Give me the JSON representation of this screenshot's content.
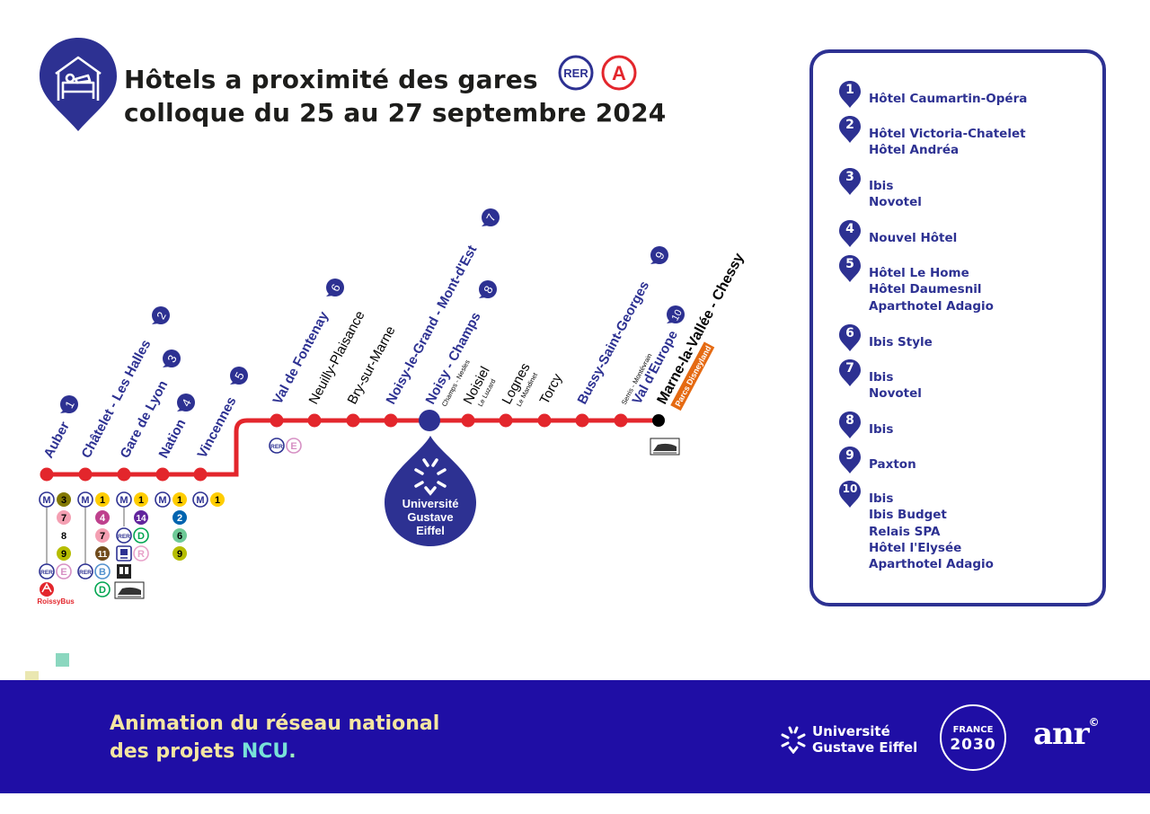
{
  "title": {
    "line1": "Hôtels a proximité des gares",
    "line2": "colloque du 25 au 27 septembre 2024",
    "badge_rer": "RER",
    "badge_line": "A"
  },
  "stations": [
    {
      "name": "Auber",
      "num": "1"
    },
    {
      "name": "Châtelet - Les Halles",
      "num": "2"
    },
    {
      "name": "Gare de Lyon",
      "num": "3"
    },
    {
      "name": "Nation",
      "num": "4"
    },
    {
      "name": "Vincennes",
      "num": "5"
    },
    {
      "name": "Val de Fontenay",
      "num": "6"
    },
    {
      "name": "Neuilly-Plaisance"
    },
    {
      "name": "Bry-sur-Marne"
    },
    {
      "name": "Noisy-le-Grand - Mont-d'Est",
      "num": "7"
    },
    {
      "name": "Noisy - Champs",
      "sub": "Champs - Nesles",
      "num": "8"
    },
    {
      "name": "Noisiel",
      "sub": "Le Luzard"
    },
    {
      "name": "Lognes",
      "sub": "Le Mandinet"
    },
    {
      "name": "Torcy"
    },
    {
      "name": "Bussy-Saint-Georges",
      "num": "9"
    },
    {
      "name": "Val d'Europe",
      "sub": "Serris - Montévrain",
      "num": "10"
    },
    {
      "name": "Marne-la-Vallée - Chessy",
      "tag": "Parcs Disneyland"
    }
  ],
  "university": {
    "line1": "Université",
    "line2": "Gustave",
    "line3": "Eiffel"
  },
  "connections": {
    "metro": "M",
    "rer": "RER",
    "roissybus": "RoissyBus",
    "auber": [
      "3",
      "7",
      "8",
      "9"
    ],
    "auber_rer": [
      "E"
    ],
    "chatelet": [
      "1",
      "4",
      "7",
      "11"
    ],
    "chatelet_rer": [
      "B",
      "D"
    ],
    "gdl": [
      "1",
      "14"
    ],
    "gdl_rer": [
      "D"
    ],
    "gdl_transilien": [
      "R"
    ],
    "nation": [
      "1",
      "2",
      "6",
      "9"
    ],
    "vincennes": [
      "1"
    ],
    "fontenay_rer": [
      "E"
    ]
  },
  "legend": [
    {
      "num": "1",
      "hotels": [
        "Hôtel Caumartin-Opéra"
      ]
    },
    {
      "num": "2",
      "hotels": [
        "Hôtel Victoria-Chatelet",
        "Hôtel Andréa"
      ]
    },
    {
      "num": "3",
      "hotels": [
        "Ibis",
        "Novotel"
      ]
    },
    {
      "num": "4",
      "hotels": [
        "Nouvel Hôtel"
      ]
    },
    {
      "num": "5",
      "hotels": [
        "Hôtel Le Home",
        "Hôtel Daumesnil",
        "Aparthotel Adagio"
      ]
    },
    {
      "num": "6",
      "hotels": [
        "Ibis Style"
      ]
    },
    {
      "num": "7",
      "hotels": [
        "Ibis",
        "Novotel"
      ]
    },
    {
      "num": "8",
      "hotels": [
        "Ibis"
      ]
    },
    {
      "num": "9",
      "hotels": [
        "Paxton"
      ]
    },
    {
      "num": "10",
      "hotels": [
        "Ibis",
        "Ibis Budget",
        "Relais SPA",
        "Hôtel l'Elysée",
        "Aparthotel Adagio"
      ]
    }
  ],
  "footer": {
    "line1": "Animation du réseau national",
    "line2_prefix": "des projets ",
    "line2_ncu": "NCU",
    "line2_dot": ".",
    "ug_line1": "Université",
    "ug_line2": "Gustave Eiffel",
    "france_line1": "FRANCE",
    "france_line2": "2030",
    "anr": "anr",
    "anr_mark": "©"
  },
  "colors": {
    "navy": "#2d3192",
    "line_red": "#e3262c",
    "footer_bg": "#1f0ea5",
    "m1": "#ffcd00",
    "m2": "#0064b0",
    "m3": "#837902",
    "m4": "#be418d",
    "m6": "#6eca97",
    "m7": "#f49fb2",
    "m9": "#b6bd00",
    "m11": "#704b1c",
    "m14": "#62259d",
    "rerB": "#5291ce",
    "rerD": "#00a550",
    "rerE": "#d690c4",
    "disney": "#e56a12"
  }
}
